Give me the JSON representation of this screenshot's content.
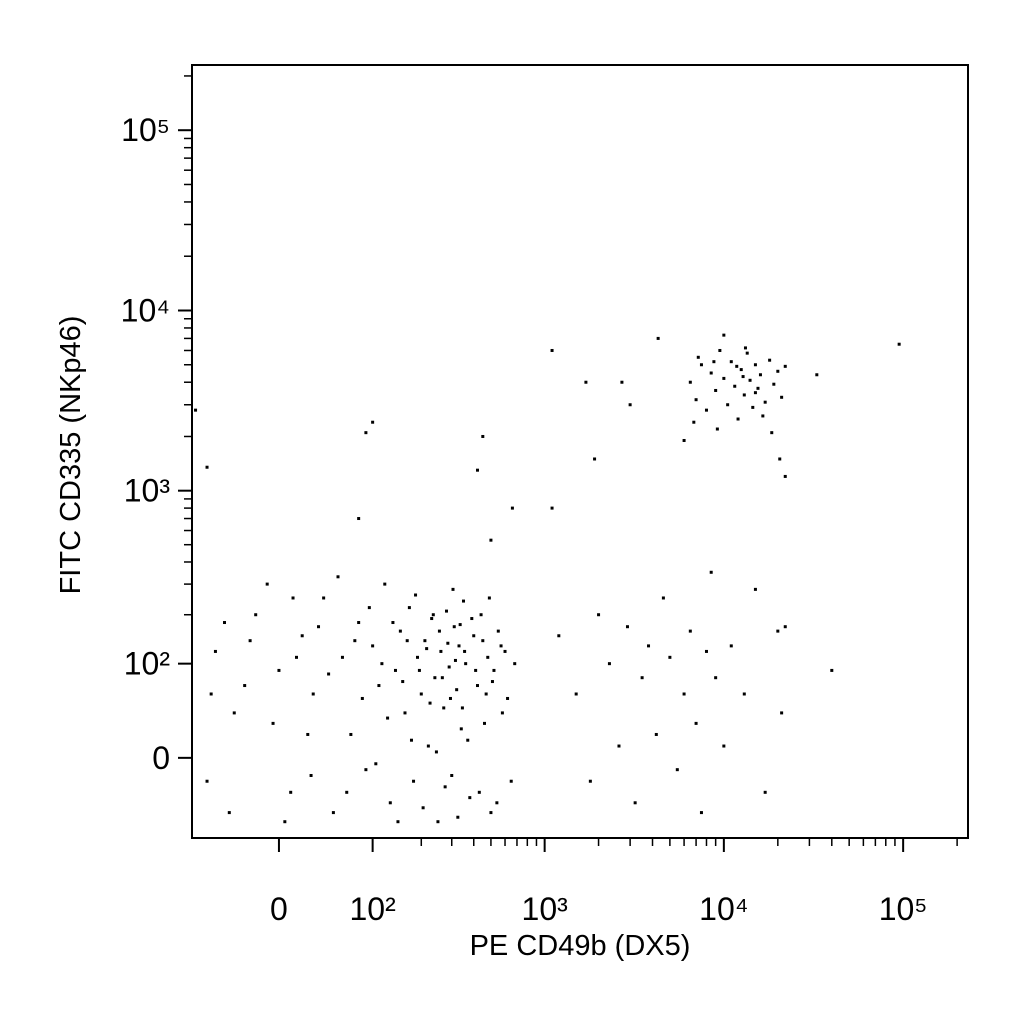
{
  "chart_data": {
    "type": "scatter",
    "xlabel": "PE CD49b (DX5)",
    "ylabel": "FITC CD335 (NKp46)",
    "scale": "biexponential",
    "color": "#000000",
    "xlim": [
      -90,
      230000
    ],
    "ylim": [
      -80,
      230000
    ],
    "xticks": [
      0,
      {
        "value": 100,
        "label": "10²"
      },
      {
        "value": 1000,
        "label": "10³"
      },
      {
        "value": 10000,
        "label": "10⁴"
      },
      {
        "value": 100000,
        "label": "10⁵"
      }
    ],
    "yticks": [
      0,
      {
        "value": 100,
        "label": "10²"
      },
      {
        "value": 1000,
        "label": "10³"
      },
      {
        "value": 10000,
        "label": "10⁴"
      },
      {
        "value": 100000,
        "label": "10⁵"
      }
    ],
    "xminorticks": [
      200,
      300,
      400,
      500,
      600,
      700,
      800,
      900,
      2000,
      3000,
      4000,
      5000,
      6000,
      7000,
      8000,
      9000,
      20000,
      30000,
      40000,
      50000,
      60000,
      70000,
      80000,
      90000,
      200000
    ],
    "yminorticks": [
      200,
      300,
      400,
      500,
      600,
      700,
      800,
      900,
      2000,
      3000,
      4000,
      5000,
      6000,
      7000,
      8000,
      9000,
      20000,
      30000,
      40000,
      50000,
      60000,
      70000,
      80000,
      90000,
      200000
    ],
    "x": [
      -60,
      -40,
      -20,
      0,
      10,
      20,
      30,
      40,
      50,
      60,
      70,
      80,
      90,
      100,
      110,
      120,
      130,
      140,
      150,
      160,
      170,
      180,
      190,
      200,
      210,
      220,
      230,
      240,
      250,
      260,
      270,
      280,
      290,
      300,
      310,
      320,
      330,
      340,
      350,
      360,
      380,
      400,
      420,
      440,
      460,
      480,
      500,
      520,
      550,
      580,
      600,
      650,
      -70,
      -50,
      -30,
      -10,
      5,
      15,
      25,
      35,
      45,
      55,
      65,
      75,
      85,
      95,
      105,
      115,
      125,
      135,
      145,
      155,
      165,
      175,
      185,
      195,
      205,
      215,
      225,
      235,
      245,
      255,
      265,
      275,
      285,
      295,
      305,
      315,
      325,
      335,
      345,
      355,
      370,
      390,
      410,
      430,
      450,
      470,
      490,
      510,
      540,
      570,
      620,
      680,
      -65,
      -45,
      -25,
      -5,
      12,
      28,
      6500,
      7000,
      7500,
      8000,
      8500,
      9000,
      9500,
      10000,
      10500,
      11000,
      11500,
      12000,
      12500,
      13000,
      13500,
      14000,
      14500,
      15000,
      15500,
      16000,
      17000,
      18000,
      19000,
      20000,
      21000,
      22000,
      6800,
      7200,
      9200,
      11800,
      13200,
      16500,
      18500,
      20500,
      22000,
      10000,
      6000,
      15000,
      12800,
      8800,
      1200,
      1500,
      1800,
      2000,
      2300,
      2600,
      2900,
      3200,
      3500,
      3800,
      4200,
      4600,
      5000,
      5500,
      6000,
      6500,
      7000,
      7500,
      8000,
      8500,
      9000,
      10000,
      11000,
      13000,
      15000,
      17000,
      20000,
      21000,
      22000,
      40000,
      1100,
      1700,
      1900,
      2700,
      3000,
      4300,
      33000,
      95000,
      90,
      100,
      420,
      450,
      -70,
      -85,
      80,
      660,
      1100,
      500
    ],
    "values": [
      120,
      40,
      200,
      90,
      -30,
      150,
      60,
      250,
      -50,
      110,
      20,
      180,
      -10,
      130,
      70,
      300,
      -40,
      90,
      160,
      40,
      220,
      -20,
      110,
      60,
      140,
      10,
      190,
      80,
      -60,
      120,
      45,
      210,
      95,
      -15,
      170,
      65,
      130,
      25,
      240,
      100,
      -35,
      150,
      70,
      200,
      30,
      110,
      -50,
      90,
      160,
      40,
      120,
      -20,
      -20,
      180,
      70,
      300,
      -60,
      110,
      20,
      170,
      85,
      330,
      -30,
      140,
      55,
      220,
      -5,
      100,
      35,
      180,
      -60,
      75,
      140,
      15,
      260,
      90,
      -45,
      125,
      50,
      200,
      5,
      160,
      80,
      -25,
      135,
      55,
      280,
      105,
      -55,
      175,
      45,
      120,
      15,
      190,
      90,
      -30,
      140,
      60,
      250,
      75,
      -40,
      130,
      55,
      100,
      60,
      -50,
      140,
      30,
      250,
      -15,
      4000,
      3200,
      5000,
      2800,
      4500,
      3600,
      6000,
      4200,
      3000,
      5200,
      3800,
      2500,
      4700,
      3400,
      5800,
      4100,
      2900,
      5000,
      3700,
      4400,
      3100,
      5300,
      3900,
      4600,
      3300,
      4900,
      2400,
      5500,
      2200,
      4900,
      6200,
      2600,
      2100,
      1500,
      1200,
      7300,
      1900,
      3500,
      4300,
      5200,
      150,
      60,
      -20,
      200,
      100,
      10,
      170,
      -40,
      80,
      130,
      20,
      250,
      110,
      -10,
      60,
      160,
      30,
      -50,
      120,
      350,
      80,
      10,
      130,
      60,
      280,
      -30,
      160,
      40,
      170,
      90,
      6000,
      4000,
      1500,
      4000,
      3000,
      7000,
      4400,
      6500,
      2100,
      2400,
      1300,
      2000,
      1350,
      2800,
      700,
      800,
      800,
      530
    ]
  }
}
